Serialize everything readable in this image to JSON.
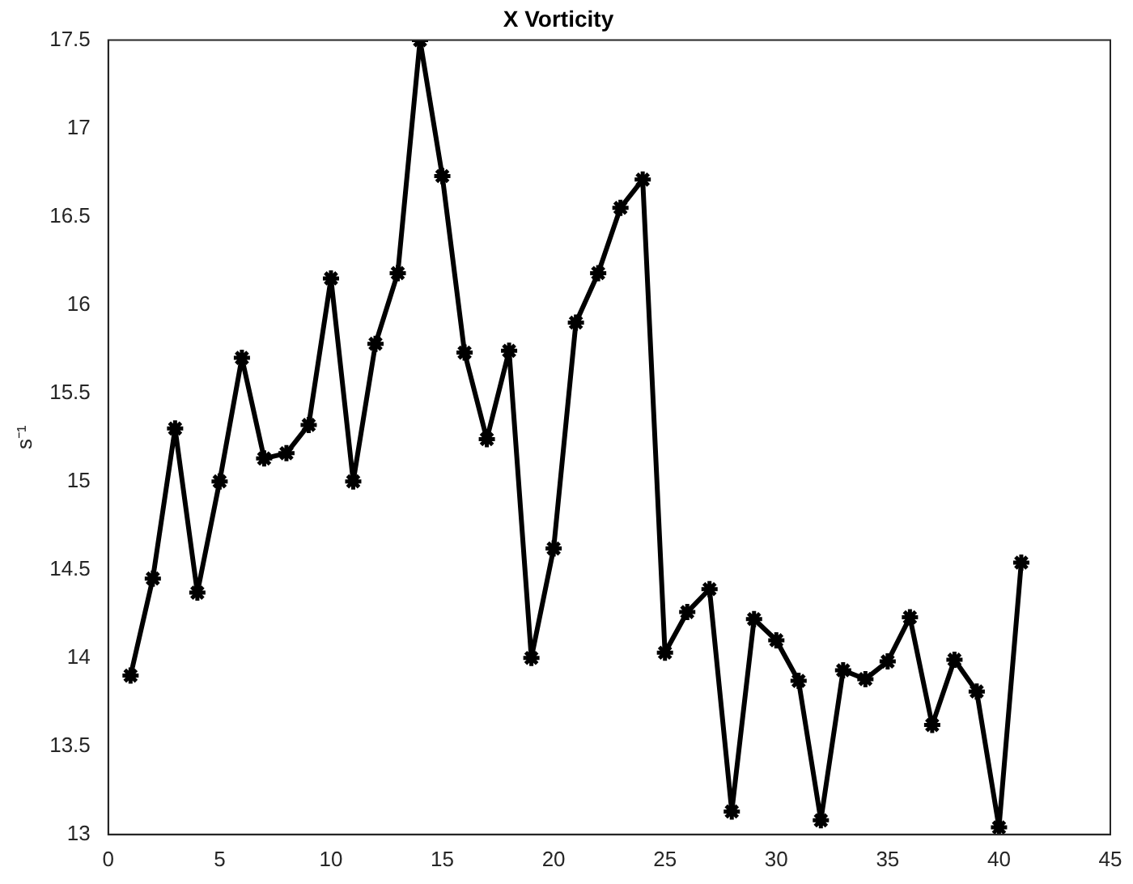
{
  "chart_data": {
    "type": "line",
    "title": "X Vorticity",
    "ylabel": "s⁻¹",
    "x": [
      1,
      2,
      3,
      4,
      5,
      6,
      7,
      8,
      9,
      10,
      11,
      12,
      13,
      14,
      15,
      16,
      17,
      18,
      19,
      20,
      21,
      22,
      23,
      24,
      25,
      26,
      27,
      28,
      29,
      30,
      31,
      32,
      33,
      34,
      35,
      36,
      37,
      38,
      39,
      40,
      41
    ],
    "series": [
      {
        "color": "#000000",
        "values": [
          13.9,
          14.45,
          15.3,
          14.37,
          15.0,
          15.7,
          15.13,
          15.16,
          15.32,
          16.15,
          15.0,
          15.78,
          16.18,
          17.5,
          16.73,
          15.73,
          15.24,
          15.74,
          14.0,
          14.62,
          15.9,
          16.18,
          16.55,
          16.71,
          14.03,
          14.26,
          14.39,
          13.13,
          14.22,
          14.1,
          13.87,
          13.08,
          13.93,
          13.88,
          13.98,
          14.23,
          13.62,
          13.99,
          13.81,
          13.04,
          14.54
        ]
      }
    ],
    "xlim": [
      0,
      45
    ],
    "xticks": [
      0,
      5,
      10,
      15,
      20,
      25,
      30,
      35,
      40,
      45
    ],
    "ylim": [
      13,
      17.5
    ],
    "yticks": [
      13,
      13.5,
      14,
      14.5,
      15,
      15.5,
      16,
      16.5,
      17,
      17.5
    ],
    "grid": false,
    "legend": false,
    "marker": "cross",
    "line_style": "solid"
  }
}
